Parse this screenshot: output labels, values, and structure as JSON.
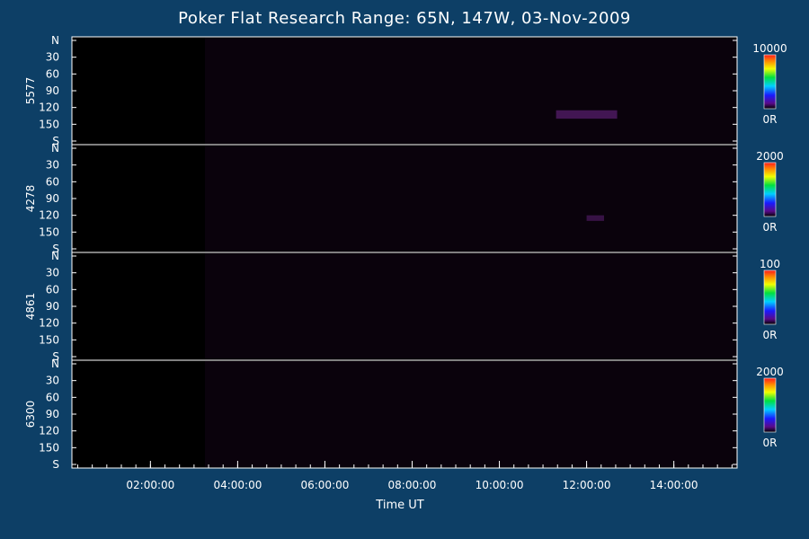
{
  "chart_data": {
    "type": "heatmap",
    "title": "Poker Flat Research Range: 65N, 147W, 03-Nov-2009",
    "xlabel": "Time UT",
    "x_ticks": [
      "02:00:00",
      "04:00:00",
      "06:00:00",
      "08:00:00",
      "10:00:00",
      "12:00:00",
      "14:00:00"
    ],
    "x_tick_hours": [
      2,
      4,
      6,
      8,
      10,
      12,
      14
    ],
    "xlim_hours": [
      0.2,
      15.45
    ],
    "y_ticks": [
      "N",
      "30",
      "60",
      "90",
      "120",
      "150",
      "S"
    ],
    "ylim_deg": [
      0,
      180
    ],
    "panels": [
      {
        "wavelength": "5577",
        "colorbar_max": "10000",
        "colorbar_min": "0R",
        "data_start_hour": 3.25,
        "features": [
          {
            "t_start": 11.3,
            "t_end": 12.7,
            "angle_start": 125,
            "angle_end": 140,
            "intensity": 0.25
          }
        ]
      },
      {
        "wavelength": "4278",
        "colorbar_max": "2000",
        "colorbar_min": "0R",
        "data_start_hour": 3.25,
        "features": [
          {
            "t_start": 12.0,
            "t_end": 12.4,
            "angle_start": 120,
            "angle_end": 130,
            "intensity": 0.2
          }
        ]
      },
      {
        "wavelength": "4861",
        "colorbar_max": "100",
        "colorbar_min": "0R",
        "data_start_hour": 3.25,
        "features": []
      },
      {
        "wavelength": "6300",
        "colorbar_max": "2000",
        "colorbar_min": "0R",
        "data_start_hour": 3.25,
        "features": []
      }
    ]
  }
}
